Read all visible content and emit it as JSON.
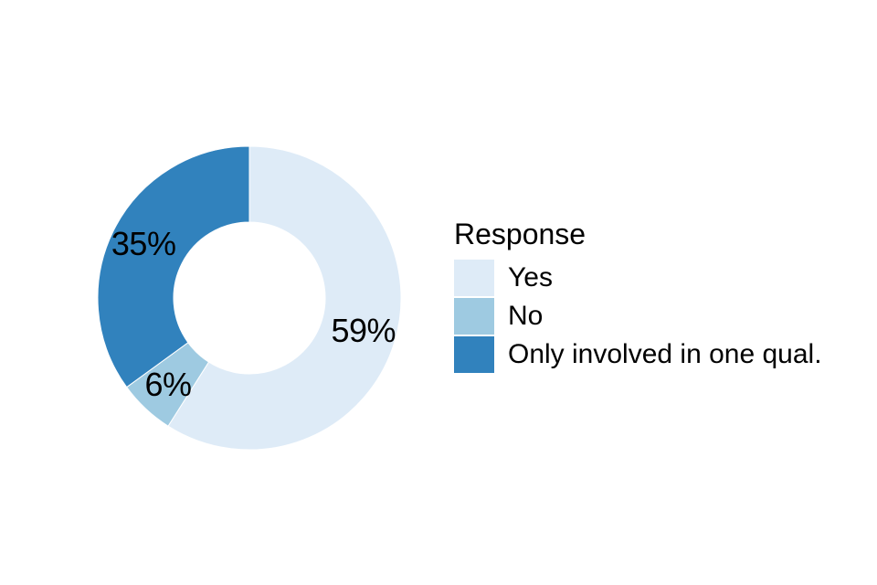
{
  "chart_data": {
    "type": "pie",
    "subtype": "donut",
    "title": "",
    "legend_title": "Response",
    "categories": [
      "Yes",
      "No",
      "Only involved in one qual."
    ],
    "values": [
      59,
      6,
      35
    ],
    "labels": [
      "59%",
      "6%",
      "35%"
    ],
    "colors": [
      "#DEEBF7",
      "#9ECAE1",
      "#3182BD"
    ],
    "label_color": "#000000",
    "background_color": "#FFFFFF",
    "start_angle_deg": 0,
    "direction": "clockwise",
    "inner_radius_ratio": 0.5,
    "legend_position": "right",
    "grid": false
  }
}
